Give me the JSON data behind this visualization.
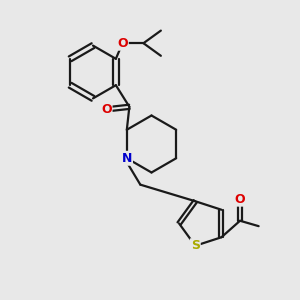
{
  "bg_color": "#e8e8e8",
  "bond_color": "#1a1a1a",
  "bond_width": 1.6,
  "atom_colors": {
    "O": "#dd0000",
    "N": "#0000cc",
    "S": "#aaaa00",
    "C": "#1a1a1a"
  },
  "figsize": [
    3.0,
    3.0
  ],
  "dpi": 100,
  "xlim": [
    0,
    10
  ],
  "ylim": [
    0,
    10
  ]
}
